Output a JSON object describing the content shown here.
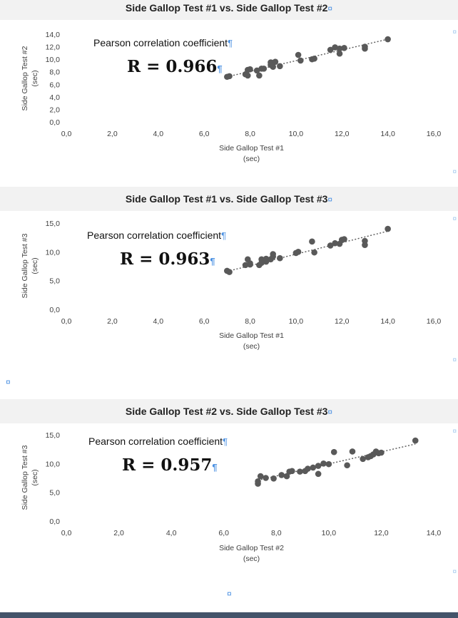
{
  "marks": {
    "pilcrow": "¶",
    "cell_end": "¤"
  },
  "colors": {
    "marker": "#595959",
    "title_band": "#f2f2f2",
    "format_mark": "#4a90e2",
    "bottom_bar": "#44546a"
  },
  "chart_data": [
    {
      "type": "scatter",
      "title": "Side Gallop Test #1 vs. Side Gallop Test #2",
      "xlabel_lines": [
        "Side Gallop Test #1",
        "(sec)"
      ],
      "ylabel_lines": [
        "Side Gallop Test #2",
        "(sec)"
      ],
      "xlim": [
        0,
        16
      ],
      "ylim": [
        0,
        14
      ],
      "xticks": [
        0,
        2,
        4,
        6,
        8,
        10,
        12,
        14,
        16
      ],
      "yticks": [
        0,
        2,
        4,
        6,
        8,
        10,
        12,
        14
      ],
      "xtick_labels": [
        "0,0",
        "2,0",
        "4,0",
        "6,0",
        "8,0",
        "10,0",
        "12,0",
        "14,0",
        "16,0"
      ],
      "ytick_labels": [
        "0,0",
        "2,0",
        "4,0",
        "6,0",
        "8,0",
        "10,0",
        "12,0",
        "14,0"
      ],
      "annotation": "Pearson correlation coefficient",
      "r_label": "R = 0.966",
      "trendline": true,
      "trend_x": [
        7.0,
        14.0
      ],
      "trend_y": [
        7.2,
        13.2
      ],
      "points": [
        [
          7.0,
          7.2
        ],
        [
          7.1,
          7.3
        ],
        [
          7.8,
          7.6
        ],
        [
          7.9,
          7.4
        ],
        [
          7.9,
          8.3
        ],
        [
          8.0,
          8.4
        ],
        [
          8.3,
          8.2
        ],
        [
          8.4,
          7.4
        ],
        [
          8.5,
          8.5
        ],
        [
          8.6,
          8.5
        ],
        [
          8.9,
          9.1
        ],
        [
          8.9,
          9.5
        ],
        [
          9.0,
          8.8
        ],
        [
          9.0,
          9.4
        ],
        [
          9.1,
          9.6
        ],
        [
          9.3,
          8.9
        ],
        [
          10.1,
          10.7
        ],
        [
          10.2,
          9.8
        ],
        [
          10.7,
          10.0
        ],
        [
          10.8,
          10.1
        ],
        [
          11.5,
          11.5
        ],
        [
          11.7,
          11.9
        ],
        [
          11.9,
          11.7
        ],
        [
          11.9,
          10.9
        ],
        [
          12.1,
          11.8
        ],
        [
          13.0,
          11.7
        ],
        [
          13.0,
          12.0
        ],
        [
          14.0,
          13.2
        ]
      ]
    },
    {
      "type": "scatter",
      "title": "Side Gallop Test #1 vs. Side Gallop Test #3",
      "xlabel_lines": [
        "Side Gallop Test #1",
        "(sec)"
      ],
      "ylabel_lines": [
        "Side Gallop Test #3",
        "(sec)"
      ],
      "xlim": [
        0,
        16
      ],
      "ylim": [
        0,
        15
      ],
      "xticks": [
        0,
        2,
        4,
        6,
        8,
        10,
        12,
        14,
        16
      ],
      "yticks": [
        0,
        5,
        10,
        15
      ],
      "xtick_labels": [
        "0,0",
        "2,0",
        "4,0",
        "6,0",
        "8,0",
        "10,0",
        "12,0",
        "14,0",
        "16,0"
      ],
      "ytick_labels": [
        "0,0",
        "5,0",
        "10,0",
        "15,0"
      ],
      "annotation": "Pearson correlation coefficient",
      "r_label": "R = 0.963",
      "trendline": true,
      "trend_x": [
        7.0,
        14.0
      ],
      "trend_y": [
        6.6,
        13.6
      ],
      "points": [
        [
          7.0,
          6.7
        ],
        [
          7.1,
          6.5
        ],
        [
          7.8,
          7.7
        ],
        [
          7.9,
          8.7
        ],
        [
          8.0,
          7.8
        ],
        [
          8.0,
          8.0
        ],
        [
          8.4,
          7.7
        ],
        [
          8.5,
          8.1
        ],
        [
          8.5,
          8.7
        ],
        [
          8.7,
          8.3
        ],
        [
          8.7,
          8.8
        ],
        [
          8.9,
          8.7
        ],
        [
          9.0,
          9.2
        ],
        [
          9.0,
          9.6
        ],
        [
          9.3,
          8.9
        ],
        [
          10.0,
          9.8
        ],
        [
          10.1,
          10.0
        ],
        [
          10.7,
          11.8
        ],
        [
          10.8,
          9.9
        ],
        [
          11.5,
          11.1
        ],
        [
          11.7,
          11.5
        ],
        [
          11.9,
          11.4
        ],
        [
          12.0,
          12.1
        ],
        [
          12.1,
          12.2
        ],
        [
          13.0,
          11.2
        ],
        [
          13.0,
          11.9
        ],
        [
          14.0,
          14.0
        ]
      ]
    },
    {
      "type": "scatter",
      "title": "Side Gallop Test #2 vs. Side Gallop Test #3",
      "xlabel_lines": [
        "Side Gallop Test #2",
        "(sec)"
      ],
      "ylabel_lines": [
        "Side Gallop Test #3",
        "(sec)"
      ],
      "xlim": [
        0,
        14
      ],
      "ylim": [
        0,
        15
      ],
      "xticks": [
        0,
        2,
        4,
        6,
        8,
        10,
        12,
        14
      ],
      "yticks": [
        0,
        5,
        10,
        15
      ],
      "xtick_labels": [
        "0,0",
        "2,0",
        "4,0",
        "6,0",
        "8,0",
        "10,0",
        "12,0",
        "14,0"
      ],
      "ytick_labels": [
        "0,0",
        "5,0",
        "10,0",
        "15,0"
      ],
      "annotation": "Pearson correlation coefficient",
      "r_label": "R = 0.957",
      "trendline": true,
      "trend_x": [
        7.3,
        13.3
      ],
      "trend_y": [
        7.1,
        13.4
      ],
      "points": [
        [
          7.3,
          6.5
        ],
        [
          7.3,
          6.9
        ],
        [
          7.4,
          7.8
        ],
        [
          7.6,
          7.5
        ],
        [
          7.9,
          7.4
        ],
        [
          8.2,
          8.0
        ],
        [
          8.4,
          7.8
        ],
        [
          8.5,
          8.6
        ],
        [
          8.6,
          8.7
        ],
        [
          8.9,
          8.6
        ],
        [
          9.1,
          8.7
        ],
        [
          9.2,
          9.1
        ],
        [
          9.4,
          9.3
        ],
        [
          9.6,
          8.2
        ],
        [
          9.6,
          9.6
        ],
        [
          9.8,
          10.0
        ],
        [
          10.0,
          9.9
        ],
        [
          10.2,
          12.0
        ],
        [
          10.7,
          9.7
        ],
        [
          10.9,
          12.1
        ],
        [
          11.3,
          10.8
        ],
        [
          11.5,
          11.1
        ],
        [
          11.6,
          11.3
        ],
        [
          11.7,
          11.6
        ],
        [
          11.8,
          12.1
        ],
        [
          11.9,
          11.8
        ],
        [
          12.0,
          11.9
        ],
        [
          13.3,
          14.0
        ]
      ]
    }
  ]
}
